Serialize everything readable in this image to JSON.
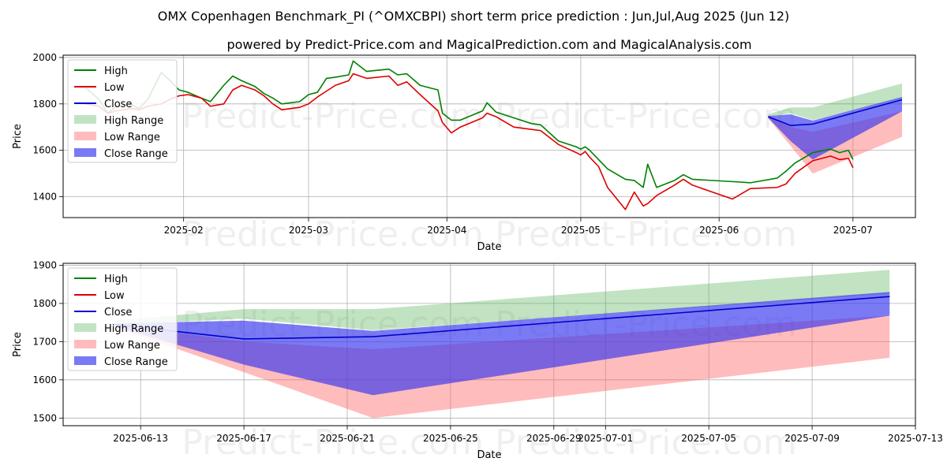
{
  "title_line1": "OMX Copenhagen Benchmark_PI (^OMXCBPI) short term price prediction : Jun,Jul,Aug 2025 (Jun 12)",
  "title_line2": "powered by Predict-Price.com and MagicalPrediction.com and MagicalAnalysis.com",
  "watermark": "Predict-Price.com",
  "colors": {
    "high": "#008000",
    "low": "#dd0000",
    "close": "#0000cc",
    "high_range": "#4caf50",
    "low_range": "#ff6b6b",
    "close_range": "#3333ee"
  },
  "chart_data": [
    {
      "type": "line",
      "title": "",
      "xlabel": "Date",
      "ylabel": "Price",
      "xlim": [
        "2025-01-05",
        "2025-07-15"
      ],
      "ylim": [
        1310,
        2010
      ],
      "x_ticks": [
        "2025-02-01",
        "2025-03-01",
        "2025-04-01",
        "2025-05-01",
        "2025-06-01",
        "2025-07-01"
      ],
      "x_tick_labels": [
        "2025-02",
        "2025-03",
        "2025-04",
        "2025-05",
        "2025-06",
        "2025-07"
      ],
      "y_ticks": [
        1400,
        1600,
        1800,
        2000
      ],
      "legend": [
        "High",
        "Low",
        "Close",
        "High Range",
        "Low Range",
        "Close Range"
      ],
      "legend_position": "top-left",
      "series": [
        {
          "name": "High",
          "points": [
            [
              "2025-01-10",
              1870
            ],
            [
              "2025-01-13",
              1820
            ],
            [
              "2025-01-15",
              1760
            ],
            [
              "2025-01-17",
              1790
            ],
            [
              "2025-01-20",
              1800
            ],
            [
              "2025-01-22",
              1780
            ],
            [
              "2025-01-24",
              1820
            ],
            [
              "2025-01-27",
              1935
            ],
            [
              "2025-01-29",
              1900
            ],
            [
              "2025-01-31",
              1860
            ],
            [
              "2025-02-02",
              1850
            ],
            [
              "2025-02-05",
              1825
            ],
            [
              "2025-02-07",
              1810
            ],
            [
              "2025-02-10",
              1880
            ],
            [
              "2025-02-12",
              1920
            ],
            [
              "2025-02-14",
              1900
            ],
            [
              "2025-02-17",
              1875
            ],
            [
              "2025-02-19",
              1845
            ],
            [
              "2025-02-21",
              1825
            ],
            [
              "2025-02-23",
              1800
            ],
            [
              "2025-02-27",
              1810
            ],
            [
              "2025-03-01",
              1840
            ],
            [
              "2025-03-03",
              1850
            ],
            [
              "2025-03-05",
              1910
            ],
            [
              "2025-03-07",
              1915
            ],
            [
              "2025-03-10",
              1925
            ],
            [
              "2025-03-11",
              1985
            ],
            [
              "2025-03-14",
              1940
            ],
            [
              "2025-03-19",
              1950
            ],
            [
              "2025-03-21",
              1925
            ],
            [
              "2025-03-23",
              1930
            ],
            [
              "2025-03-26",
              1880
            ],
            [
              "2025-03-30",
              1860
            ],
            [
              "2025-03-31",
              1760
            ],
            [
              "2025-04-02",
              1730
            ],
            [
              "2025-04-04",
              1730
            ],
            [
              "2025-04-09",
              1770
            ],
            [
              "2025-04-10",
              1805
            ],
            [
              "2025-04-12",
              1765
            ],
            [
              "2025-04-16",
              1740
            ],
            [
              "2025-04-20",
              1715
            ],
            [
              "2025-04-22",
              1710
            ],
            [
              "2025-04-26",
              1640
            ],
            [
              "2025-04-30",
              1615
            ],
            [
              "2025-05-01",
              1605
            ],
            [
              "2025-05-02",
              1615
            ],
            [
              "2025-05-03",
              1600
            ],
            [
              "2025-05-05",
              1560
            ],
            [
              "2025-05-07",
              1520
            ],
            [
              "2025-05-11",
              1475
            ],
            [
              "2025-05-13",
              1470
            ],
            [
              "2025-05-15",
              1440
            ],
            [
              "2025-05-16",
              1540
            ],
            [
              "2025-05-18",
              1440
            ],
            [
              "2025-05-22",
              1470
            ],
            [
              "2025-05-24",
              1495
            ],
            [
              "2025-05-26",
              1475
            ],
            [
              "2025-06-04",
              1465
            ],
            [
              "2025-06-08",
              1460
            ],
            [
              "2025-06-14",
              1480
            ],
            [
              "2025-06-16",
              1510
            ],
            [
              "2025-06-18",
              1545
            ],
            [
              "2025-06-22",
              1590
            ],
            [
              "2025-06-26",
              1605
            ],
            [
              "2025-06-28",
              1590
            ],
            [
              "2025-06-30",
              1600
            ],
            [
              "2025-07-01",
              1560
            ]
          ]
        },
        {
          "name": "Low",
          "points": [
            [
              "2025-01-10",
              1800
            ],
            [
              "2025-01-13",
              1790
            ],
            [
              "2025-01-15",
              1760
            ],
            [
              "2025-01-17",
              1770
            ],
            [
              "2025-01-20",
              1780
            ],
            [
              "2025-01-22",
              1775
            ],
            [
              "2025-01-24",
              1790
            ],
            [
              "2025-01-27",
              1800
            ],
            [
              "2025-01-29",
              1820
            ],
            [
              "2025-01-31",
              1835
            ],
            [
              "2025-02-02",
              1840
            ],
            [
              "2025-02-05",
              1825
            ],
            [
              "2025-02-07",
              1790
            ],
            [
              "2025-02-10",
              1800
            ],
            [
              "2025-02-12",
              1860
            ],
            [
              "2025-02-14",
              1880
            ],
            [
              "2025-02-17",
              1860
            ],
            [
              "2025-02-19",
              1835
            ],
            [
              "2025-02-21",
              1800
            ],
            [
              "2025-02-23",
              1775
            ],
            [
              "2025-02-27",
              1785
            ],
            [
              "2025-03-01",
              1800
            ],
            [
              "2025-03-03",
              1830
            ],
            [
              "2025-03-05",
              1855
            ],
            [
              "2025-03-07",
              1880
            ],
            [
              "2025-03-10",
              1900
            ],
            [
              "2025-03-11",
              1930
            ],
            [
              "2025-03-14",
              1910
            ],
            [
              "2025-03-19",
              1920
            ],
            [
              "2025-03-21",
              1880
            ],
            [
              "2025-03-23",
              1895
            ],
            [
              "2025-03-26",
              1840
            ],
            [
              "2025-03-30",
              1770
            ],
            [
              "2025-03-31",
              1720
            ],
            [
              "2025-04-02",
              1675
            ],
            [
              "2025-04-04",
              1700
            ],
            [
              "2025-04-09",
              1740
            ],
            [
              "2025-04-10",
              1760
            ],
            [
              "2025-04-12",
              1745
            ],
            [
              "2025-04-16",
              1700
            ],
            [
              "2025-04-20",
              1690
            ],
            [
              "2025-04-22",
              1685
            ],
            [
              "2025-04-26",
              1625
            ],
            [
              "2025-04-30",
              1590
            ],
            [
              "2025-05-01",
              1580
            ],
            [
              "2025-05-02",
              1595
            ],
            [
              "2025-05-03",
              1570
            ],
            [
              "2025-05-05",
              1530
            ],
            [
              "2025-05-07",
              1440
            ],
            [
              "2025-05-11",
              1345
            ],
            [
              "2025-05-13",
              1420
            ],
            [
              "2025-05-15",
              1360
            ],
            [
              "2025-05-16",
              1370
            ],
            [
              "2025-05-18",
              1405
            ],
            [
              "2025-05-22",
              1450
            ],
            [
              "2025-05-24",
              1475
            ],
            [
              "2025-05-26",
              1450
            ],
            [
              "2025-06-04",
              1390
            ],
            [
              "2025-06-08",
              1435
            ],
            [
              "2025-06-14",
              1440
            ],
            [
              "2025-06-16",
              1455
            ],
            [
              "2025-06-18",
              1500
            ],
            [
              "2025-06-22",
              1555
            ],
            [
              "2025-06-26",
              1575
            ],
            [
              "2025-06-28",
              1560
            ],
            [
              "2025-06-30",
              1565
            ],
            [
              "2025-07-01",
              1525
            ]
          ]
        },
        {
          "name": "Close",
          "points": [
            [
              "2025-06-12",
              1745
            ],
            [
              "2025-06-17",
              1707
            ],
            [
              "2025-06-22",
              1713
            ],
            [
              "2025-07-12",
              1818
            ]
          ]
        }
      ],
      "bands": [
        {
          "name": "High Range",
          "x": [
            "2025-06-12",
            "2025-06-17",
            "2025-06-22",
            "2025-07-12"
          ],
          "lower": [
            1745,
            1760,
            1730,
            1825
          ],
          "upper": [
            1755,
            1785,
            1785,
            1888
          ]
        },
        {
          "name": "Low Range",
          "x": [
            "2025-06-12",
            "2025-06-17",
            "2025-06-22",
            "2025-07-12"
          ],
          "lower": [
            1738,
            1620,
            1500,
            1658
          ],
          "upper": [
            1745,
            1700,
            1680,
            1768
          ]
        },
        {
          "name": "Close Range",
          "x": [
            "2025-06-12",
            "2025-06-17",
            "2025-06-22",
            "2025-07-12"
          ],
          "lower": [
            1740,
            1640,
            1560,
            1768
          ],
          "upper": [
            1748,
            1755,
            1728,
            1830
          ]
        }
      ]
    },
    {
      "type": "line",
      "title": "",
      "xlabel": "Date",
      "ylabel": "Price",
      "xlim": [
        "2025-06-10",
        "2025-07-13"
      ],
      "ylim": [
        1480,
        1905
      ],
      "x_ticks": [
        "2025-06-13",
        "2025-06-17",
        "2025-06-21",
        "2025-06-25",
        "2025-06-29",
        "2025-07-01",
        "2025-07-05",
        "2025-07-09",
        "2025-07-13"
      ],
      "x_tick_labels": [
        "2025-06-13",
        "2025-06-17",
        "2025-06-21",
        "2025-06-25",
        "2025-06-29",
        "2025-07-01",
        "2025-07-05",
        "2025-07-09",
        "2025-07-13"
      ],
      "y_ticks": [
        1500,
        1600,
        1700,
        1800,
        1900
      ],
      "legend": [
        "High",
        "Low",
        "Close",
        "High Range",
        "Low Range",
        "Close Range"
      ],
      "legend_position": "top-left",
      "series": [
        {
          "name": "High",
          "points": []
        },
        {
          "name": "Low",
          "points": []
        },
        {
          "name": "Close",
          "points": [
            [
              "2025-06-12",
              1745
            ],
            [
              "2025-06-17",
              1707
            ],
            [
              "2025-06-22",
              1713
            ],
            [
              "2025-07-12",
              1818
            ]
          ]
        }
      ],
      "bands": [
        {
          "name": "High Range",
          "x": [
            "2025-06-12",
            "2025-06-17",
            "2025-06-22",
            "2025-07-12"
          ],
          "lower": [
            1745,
            1760,
            1730,
            1825
          ],
          "upper": [
            1755,
            1785,
            1785,
            1888
          ]
        },
        {
          "name": "Low Range",
          "x": [
            "2025-06-12",
            "2025-06-17",
            "2025-06-22",
            "2025-07-12"
          ],
          "lower": [
            1738,
            1620,
            1500,
            1658
          ],
          "upper": [
            1745,
            1700,
            1680,
            1768
          ]
        },
        {
          "name": "Close Range",
          "x": [
            "2025-06-12",
            "2025-06-17",
            "2025-06-22",
            "2025-07-12"
          ],
          "lower": [
            1740,
            1640,
            1560,
            1768
          ],
          "upper": [
            1748,
            1755,
            1728,
            1830
          ]
        }
      ]
    }
  ]
}
